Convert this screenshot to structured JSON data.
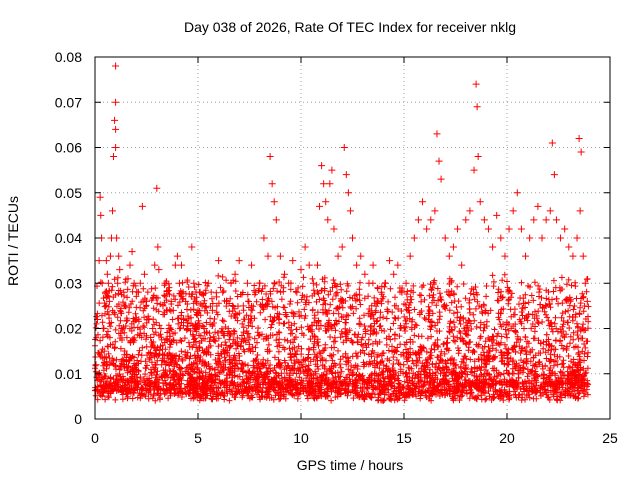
{
  "chart_data": {
    "type": "scatter",
    "title": "Day 038 of 2026, Rate Of TEC Index for receiver nklg",
    "xlabel": "GPS time / hours",
    "ylabel": "ROTI / TECUs",
    "xlim": [
      0,
      25
    ],
    "ylim": [
      0,
      0.08
    ],
    "x_ticks": [
      "0",
      "5",
      "10",
      "15",
      "20",
      "25"
    ],
    "y_ticks": [
      "0",
      "0.01",
      "0.02",
      "0.03",
      "0.04",
      "0.05",
      "0.06",
      "0.07",
      "0.08"
    ],
    "grid": true,
    "marker": "+",
    "color": "#ff0000",
    "series": [
      {
        "name": "ROTI",
        "x": [
          0.05,
          0.12,
          0.2,
          0.25,
          0.28,
          0.32,
          0.35,
          0.4,
          0.45,
          0.5,
          0.55,
          0.6,
          0.65,
          0.7,
          0.75,
          0.8,
          0.85,
          0.9,
          0.95,
          1.0,
          1.0,
          1.0,
          1.0,
          1.05,
          1.1,
          1.15,
          1.2,
          1.3,
          1.4,
          1.5,
          1.6,
          1.7,
          1.8,
          1.9,
          2.0,
          2.1,
          2.2,
          2.3,
          2.4,
          2.5,
          2.6,
          2.7,
          2.8,
          2.9,
          3.0,
          3.05,
          3.1,
          3.2,
          3.3,
          3.4,
          3.5,
          3.6,
          3.7,
          3.8,
          3.9,
          4.0,
          4.1,
          4.2,
          4.3,
          4.4,
          4.5,
          4.6,
          4.7,
          4.8,
          4.9,
          5.0,
          5.1,
          5.2,
          5.3,
          5.5,
          5.7,
          5.9,
          6.0,
          6.2,
          6.4,
          6.6,
          6.8,
          7.0,
          7.2,
          7.4,
          7.6,
          7.8,
          8.0,
          8.2,
          8.4,
          8.5,
          8.6,
          8.7,
          8.8,
          9.0,
          9.2,
          9.4,
          9.6,
          9.8,
          10.0,
          10.2,
          10.4,
          10.6,
          10.8,
          10.9,
          11.0,
          11.1,
          11.2,
          11.3,
          11.4,
          11.5,
          11.6,
          11.8,
          12.0,
          12.1,
          12.2,
          12.3,
          12.4,
          12.5,
          12.7,
          12.9,
          13.1,
          13.3,
          13.5,
          13.7,
          13.9,
          14.1,
          14.3,
          14.5,
          14.7,
          14.9,
          15.1,
          15.3,
          15.5,
          15.7,
          15.9,
          16.1,
          16.3,
          16.5,
          16.6,
          16.7,
          16.8,
          17.0,
          17.2,
          17.4,
          17.6,
          17.8,
          18.0,
          18.2,
          18.4,
          18.5,
          18.55,
          18.6,
          18.7,
          18.9,
          19.1,
          19.3,
          19.5,
          19.7,
          19.9,
          20.1,
          20.3,
          20.5,
          20.7,
          20.9,
          21.1,
          21.3,
          21.5,
          21.7,
          21.9,
          22.1,
          22.2,
          22.3,
          22.4,
          22.6,
          22.8,
          23.0,
          23.2,
          23.4,
          23.5,
          23.55,
          23.6,
          23.7,
          23.8,
          23.9
        ],
        "y": [
          0.012,
          0.022,
          0.035,
          0.049,
          0.045,
          0.04,
          0.03,
          0.02,
          0.015,
          0.028,
          0.035,
          0.032,
          0.03,
          0.026,
          0.036,
          0.04,
          0.046,
          0.058,
          0.066,
          0.078,
          0.07,
          0.064,
          0.06,
          0.04,
          0.03,
          0.036,
          0.033,
          0.02,
          0.028,
          0.025,
          0.031,
          0.034,
          0.037,
          0.03,
          0.022,
          0.028,
          0.03,
          0.047,
          0.032,
          0.026,
          0.022,
          0.018,
          0.02,
          0.034,
          0.051,
          0.038,
          0.033,
          0.02,
          0.025,
          0.03,
          0.024,
          0.02,
          0.026,
          0.024,
          0.034,
          0.036,
          0.03,
          0.034,
          0.022,
          0.026,
          0.02,
          0.016,
          0.038,
          0.03,
          0.026,
          0.024,
          0.028,
          0.025,
          0.02,
          0.03,
          0.024,
          0.027,
          0.035,
          0.028,
          0.026,
          0.03,
          0.032,
          0.035,
          0.025,
          0.03,
          0.034,
          0.028,
          0.03,
          0.04,
          0.036,
          0.058,
          0.052,
          0.048,
          0.044,
          0.036,
          0.032,
          0.03,
          0.035,
          0.028,
          0.033,
          0.038,
          0.034,
          0.03,
          0.034,
          0.047,
          0.056,
          0.052,
          0.048,
          0.044,
          0.052,
          0.055,
          0.042,
          0.036,
          0.038,
          0.06,
          0.054,
          0.05,
          0.046,
          0.04,
          0.034,
          0.036,
          0.032,
          0.03,
          0.034,
          0.026,
          0.028,
          0.03,
          0.035,
          0.032,
          0.034,
          0.028,
          0.03,
          0.036,
          0.04,
          0.044,
          0.048,
          0.042,
          0.044,
          0.046,
          0.063,
          0.057,
          0.053,
          0.04,
          0.036,
          0.038,
          0.042,
          0.034,
          0.044,
          0.046,
          0.055,
          0.074,
          0.069,
          0.058,
          0.048,
          0.044,
          0.042,
          0.038,
          0.045,
          0.04,
          0.036,
          0.042,
          0.046,
          0.05,
          0.042,
          0.036,
          0.04,
          0.044,
          0.047,
          0.04,
          0.044,
          0.046,
          0.061,
          0.054,
          0.044,
          0.04,
          0.042,
          0.038,
          0.036,
          0.04,
          0.062,
          0.046,
          0.059,
          0.036,
          0.03,
          0.026
        ]
      }
    ]
  }
}
